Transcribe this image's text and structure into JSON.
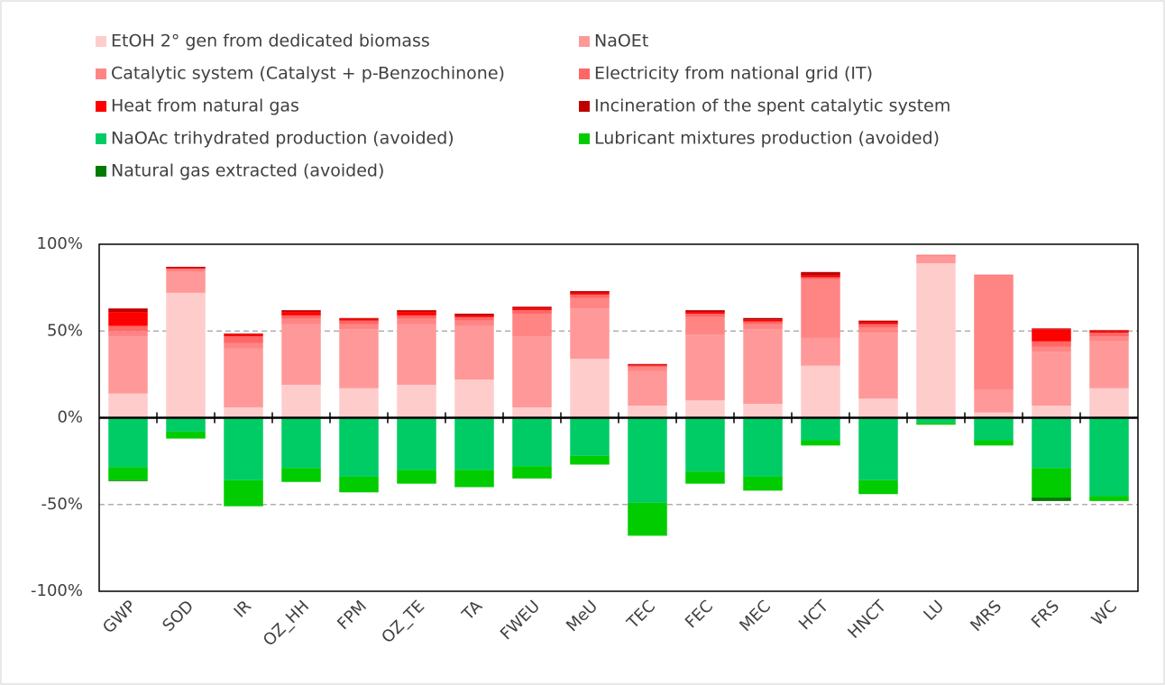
{
  "chart_data": {
    "type": "stacked-bar",
    "categories": [
      "GWP",
      "SOD",
      "IR",
      "OZ_HH",
      "FPM",
      "OZ_TE",
      "TA",
      "FWEU",
      "MeU",
      "TEC",
      "FEC",
      "MEC",
      "HCT",
      "HNCT",
      "LU",
      "MRS",
      "FRS",
      "WC"
    ],
    "series": [
      {
        "name": "EtOH 2° gen from dedicated biomass",
        "color": "#ffcccc",
        "values": [
          14,
          72,
          6,
          19,
          17,
          19,
          22,
          6,
          34,
          7,
          10,
          8,
          30,
          11,
          89,
          3,
          7,
          17
        ]
      },
      {
        "name": "NaOEt",
        "color": "#ff9999",
        "values": [
          33,
          12,
          34,
          35,
          34,
          35,
          31,
          41,
          29,
          20,
          38,
          43,
          16,
          38,
          4,
          13,
          31,
          27
        ]
      },
      {
        "name": "Catalytic system (Catalyst + p-Benzochinone)",
        "color": "#ff8585",
        "values": [
          3,
          1.5,
          3,
          3,
          3,
          3,
          3,
          13,
          6,
          2,
          10,
          3,
          34,
          3,
          1,
          66,
          3,
          3
        ]
      },
      {
        "name": "Electricity from national grid (IT)",
        "color": "#ff6666",
        "values": [
          3,
          0.5,
          4,
          2,
          2,
          2,
          2,
          2,
          2,
          1,
          2,
          1.5,
          1,
          2,
          0,
          0.5,
          3,
          2
        ]
      },
      {
        "name": "Heat from natural gas",
        "color": "#ff0000",
        "values": [
          8,
          0.5,
          1,
          2,
          1,
          2,
          1,
          1,
          1,
          0.5,
          1,
          1,
          1,
          1,
          0,
          0,
          7,
          1
        ]
      },
      {
        "name": "Incineration of the spent catalytic system",
        "color": "#c00000",
        "values": [
          2,
          0.5,
          0.5,
          1,
          0.5,
          1,
          1,
          1,
          1,
          0.5,
          1,
          1,
          2,
          1,
          0,
          0,
          0.5,
          0.5
        ]
      },
      {
        "name": "NaOAc trihydrated production (avoided)",
        "color": "#00cc66",
        "values": [
          -28.5,
          -8,
          -36,
          -29,
          -34,
          -30,
          -30,
          -28,
          -22,
          -49,
          -31,
          -34,
          -13,
          -36,
          -3,
          -13,
          -29,
          -45
        ]
      },
      {
        "name": "Lubricant mixtures production (avoided)",
        "color": "#00cc00",
        "values": [
          -7.5,
          -4,
          -15,
          -8,
          -9,
          -8,
          -10,
          -7,
          -5,
          -19,
          -7,
          -8,
          -3,
          -8,
          -1,
          -3,
          -17,
          -3
        ]
      },
      {
        "name": "Natural gas extracted (avoided)",
        "color": "#007a00",
        "values": [
          -0.5,
          0,
          0,
          0,
          0,
          0,
          0,
          0,
          0,
          0,
          0,
          0,
          0,
          0,
          0,
          0,
          -2,
          0
        ]
      }
    ],
    "ylim": [
      -100,
      100
    ],
    "yticks": [
      {
        "value": -100,
        "label": "-100%"
      },
      {
        "value": -50,
        "label": "-50%"
      },
      {
        "value": 0,
        "label": "0%"
      },
      {
        "value": 50,
        "label": "50%"
      },
      {
        "value": 100,
        "label": "100%"
      }
    ],
    "grid": true
  }
}
